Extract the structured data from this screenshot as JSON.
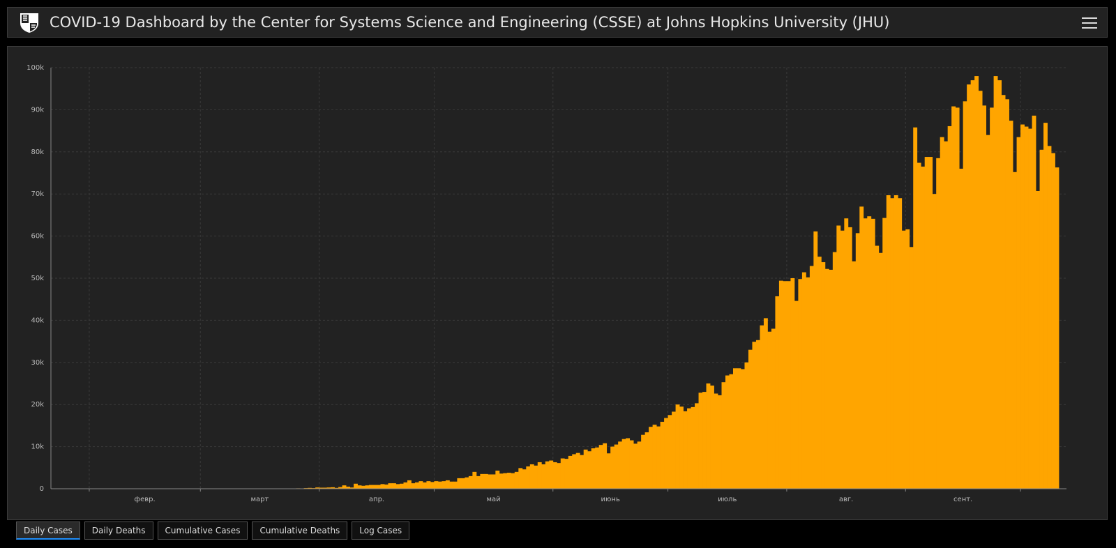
{
  "header": {
    "title": "COVID-19 Dashboard by the Center for Systems Science and Engineering (CSSE) at Johns Hopkins University (JHU)"
  },
  "colors": {
    "bar": "#ffa500",
    "background": "#222222",
    "grid": "#3a3a3a"
  },
  "tabs": [
    {
      "label": "Daily Cases",
      "active": true
    },
    {
      "label": "Daily Deaths",
      "active": false
    },
    {
      "label": "Cumulative Cases",
      "active": false
    },
    {
      "label": "Cumulative Deaths",
      "active": false
    },
    {
      "label": "Log Cases",
      "active": false
    }
  ],
  "chart_data": {
    "type": "bar",
    "title": "",
    "xlabel": "",
    "ylabel": "",
    "ylim": [
      0,
      100000
    ],
    "y_ticks": [
      "0",
      "10k",
      "20k",
      "30k",
      "40k",
      "50k",
      "60k",
      "70k",
      "80k",
      "90k",
      "100k"
    ],
    "x_tick_labels": [
      "февр.",
      "март",
      "апр.",
      "май",
      "июнь",
      "июль",
      "авг.",
      "сент."
    ],
    "grid": true,
    "start_date": "2020-01-22",
    "values": [
      0,
      0,
      0,
      0,
      0,
      0,
      0,
      0,
      0,
      0,
      0,
      0,
      0,
      0,
      0,
      0,
      0,
      0,
      0,
      0,
      0,
      0,
      0,
      0,
      0,
      0,
      0,
      0,
      0,
      0,
      0,
      0,
      0,
      0,
      0,
      0,
      0,
      0,
      0,
      0,
      0,
      0,
      0,
      0,
      0,
      0,
      0,
      0,
      0,
      0,
      0,
      0,
      0,
      0,
      0,
      0,
      0,
      0,
      0,
      0,
      0,
      0,
      0,
      0,
      100,
      80,
      150,
      200,
      150,
      300,
      250,
      250,
      300,
      350,
      200,
      400,
      800,
      500,
      300,
      1200,
      800,
      700,
      800,
      900,
      900,
      900,
      1100,
      1000,
      1300,
      1300,
      1100,
      1200,
      1500,
      2000,
      1300,
      1500,
      1800,
      1500,
      1800,
      1600,
      1800,
      1700,
      1800,
      2000,
      1700,
      1700,
      2500,
      2500,
      2700,
      3000,
      4000,
      3000,
      3500,
      3500,
      3400,
      3400,
      4300,
      3600,
      3700,
      3800,
      3700,
      4000,
      4900,
      4600,
      5300,
      5800,
      5500,
      6300,
      5800,
      6500,
      6700,
      6300,
      6100,
      7200,
      7100,
      7800,
      8200,
      8500,
      8000,
      9300,
      8900,
      9600,
      9800,
      10400,
      10800,
      8400,
      10000,
      10500,
      11200,
      11800,
      12000,
      11500,
      10700,
      11200,
      12800,
      13400,
      14700,
      15200,
      14800,
      15900,
      16800,
      17500,
      18300,
      20000,
      19500,
      18400,
      19100,
      19400,
      20300,
      22800,
      23000,
      25000,
      24500,
      22600,
      22200,
      25300,
      26900,
      27200,
      28600,
      28600,
      28400,
      30000,
      33000,
      34900,
      35300,
      38800,
      40500,
      37300,
      38000,
      45700,
      49400,
      49300,
      49300,
      50000,
      44600,
      49800,
      51400,
      50200,
      52900,
      61100,
      55100,
      53800,
      52200,
      52000,
      56200,
      62500,
      61300,
      64200,
      62100,
      54000,
      60700,
      67000,
      64200,
      64700,
      64100,
      57700,
      56000,
      64300,
      69700,
      69000,
      69700,
      69000,
      61300,
      61600,
      57400,
      85800,
      77400,
      76500,
      78800,
      78800,
      70000,
      78500,
      83500,
      82500,
      86100,
      90800,
      90500,
      76000,
      92000,
      96000,
      97000,
      98000,
      94500,
      91000,
      84000,
      90500,
      98000,
      97000,
      93500,
      92500,
      87400,
      75200,
      83500,
      86500,
      86000,
      85500,
      88600,
      70700,
      80500,
      86900,
      81400,
      79700,
      76300
    ]
  }
}
